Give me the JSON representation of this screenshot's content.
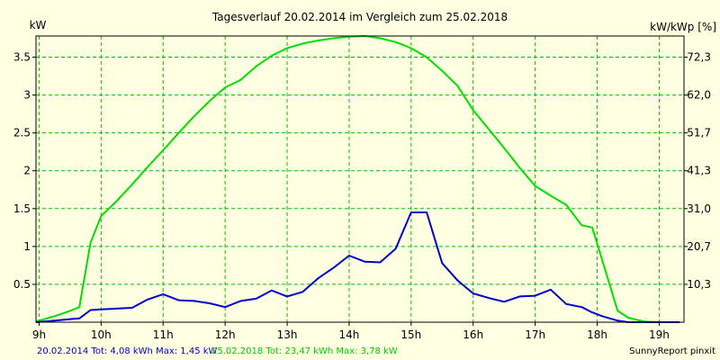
{
  "chart_data": {
    "type": "line",
    "title": "Tagesverlauf 20.02.2014 im Vergleich zum 25.02.2018",
    "ylabel_left": "kW",
    "ylabel_right": "kW/kWp [%]",
    "xlim": [
      8.95,
      19.4
    ],
    "ylim": [
      0,
      3.78
    ],
    "grid": true,
    "x_ticks": [
      {
        "value": 9,
        "label": "9h"
      },
      {
        "value": 10,
        "label": "10h"
      },
      {
        "value": 11,
        "label": "11h"
      },
      {
        "value": 12,
        "label": "12h"
      },
      {
        "value": 13,
        "label": "13h"
      },
      {
        "value": 14,
        "label": "14h"
      },
      {
        "value": 15,
        "label": "15h"
      },
      {
        "value": 16,
        "label": "16h"
      },
      {
        "value": 17,
        "label": "17h"
      },
      {
        "value": 18,
        "label": "18h"
      },
      {
        "value": 19,
        "label": "19h"
      }
    ],
    "y_ticks_left": [
      {
        "value": 0.5,
        "label": "0.5"
      },
      {
        "value": 1,
        "label": "1"
      },
      {
        "value": 1.5,
        "label": "1.5"
      },
      {
        "value": 2,
        "label": "2"
      },
      {
        "value": 2.5,
        "label": "2.5"
      },
      {
        "value": 3,
        "label": "3"
      },
      {
        "value": 3.5,
        "label": "3.5"
      }
    ],
    "y_ticks_right": [
      {
        "value": 0.5,
        "label": "10,3"
      },
      {
        "value": 1,
        "label": "20,7"
      },
      {
        "value": 1.5,
        "label": "31,0"
      },
      {
        "value": 2,
        "label": "41,3"
      },
      {
        "value": 2.5,
        "label": "51,7"
      },
      {
        "value": 3,
        "label": "62,0"
      },
      {
        "value": 3.5,
        "label": "72,3"
      }
    ],
    "series": [
      {
        "color": "#00e000",
        "x": [
          8.95,
          9.25,
          9.5,
          9.65,
          9.83,
          10.0,
          10.25,
          10.5,
          10.75,
          11.0,
          11.25,
          11.5,
          11.75,
          12.0,
          12.25,
          12.5,
          12.75,
          13.0,
          13.25,
          13.5,
          13.75,
          14.0,
          14.25,
          14.5,
          14.75,
          15.0,
          15.25,
          15.5,
          15.75,
          16.0,
          16.25,
          16.5,
          16.75,
          17.0,
          17.25,
          17.5,
          17.75,
          17.92,
          18.08,
          18.33,
          18.5,
          18.75,
          19.0,
          19.15,
          19.33
        ],
        "y": [
          0.01,
          0.08,
          0.15,
          0.2,
          1.05,
          1.4,
          1.6,
          1.82,
          2.05,
          2.27,
          2.5,
          2.72,
          2.92,
          3.1,
          3.2,
          3.38,
          3.52,
          3.62,
          3.68,
          3.72,
          3.75,
          3.77,
          3.78,
          3.75,
          3.7,
          3.62,
          3.5,
          3.32,
          3.12,
          2.8,
          2.55,
          2.3,
          2.04,
          1.8,
          1.67,
          1.55,
          1.28,
          1.25,
          0.82,
          0.15,
          0.06,
          0.01,
          0.0,
          0.0,
          0.0
        ]
      },
      {
        "color": "#0000cc",
        "x": [
          8.95,
          9.25,
          9.5,
          9.65,
          9.83,
          10.0,
          10.25,
          10.5,
          10.75,
          11.0,
          11.25,
          11.5,
          11.75,
          12.0,
          12.25,
          12.5,
          12.75,
          13.0,
          13.25,
          13.5,
          13.75,
          14.0,
          14.25,
          14.5,
          14.75,
          15.0,
          15.25,
          15.5,
          15.75,
          16.0,
          16.25,
          16.5,
          16.75,
          17.0,
          17.25,
          17.5,
          17.75,
          17.92,
          18.08,
          18.33,
          18.5,
          18.75,
          19.0,
          19.15,
          19.33
        ],
        "y": [
          0.0,
          0.02,
          0.04,
          0.05,
          0.16,
          0.17,
          0.18,
          0.19,
          0.3,
          0.37,
          0.29,
          0.28,
          0.25,
          0.2,
          0.28,
          0.31,
          0.42,
          0.34,
          0.4,
          0.58,
          0.72,
          0.88,
          0.8,
          0.79,
          0.97,
          1.45,
          1.45,
          0.78,
          0.55,
          0.38,
          0.32,
          0.27,
          0.34,
          0.35,
          0.43,
          0.24,
          0.2,
          0.13,
          0.08,
          0.02,
          0.0,
          0.0,
          0.0,
          0.0,
          0.0
        ]
      }
    ]
  },
  "footer": {
    "blue_text": "20.02.2014 Tot: 4,08 kWh Max: 1,45 kW",
    "green_text": "25.02.2018 Tot: 23,47 kWh Max: 3,78 kW",
    "brand": "SunnyReport pinxit"
  },
  "colors": {
    "background": "#ffffe1",
    "grid": "#00c000",
    "blue_text": "#0000cc",
    "green_text": "#00cc00"
  }
}
